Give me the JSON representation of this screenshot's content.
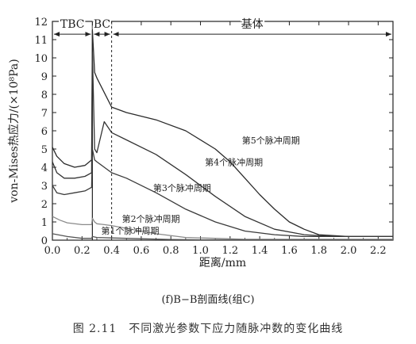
{
  "chart_data": {
    "type": "line",
    "xlabel": "距离/mm",
    "ylabel": "von-Mises热应力/(×10⁸Pa)",
    "xlim": [
      0,
      2.3
    ],
    "ylim": [
      0,
      12
    ],
    "x_ticks": [
      "0.0",
      "0.2",
      "0.4",
      "0.6",
      "0.8",
      "1.0",
      "1.2",
      "1.4",
      "1.6",
      "1.8",
      "2.0",
      "2.2"
    ],
    "y_ticks": [
      "0",
      "1",
      "2",
      "3",
      "4",
      "5",
      "6",
      "7",
      "8",
      "9",
      "10",
      "11",
      "12"
    ],
    "regions": [
      {
        "label": "TBC",
        "from": 0.0,
        "to": 0.27
      },
      {
        "label": "BC",
        "from": 0.27,
        "to": 0.4
      },
      {
        "label": "基体",
        "from": 0.4,
        "to": 2.3
      }
    ],
    "series": [
      {
        "name": "第5个脉冲周期",
        "x": [
          0,
          0.03,
          0.08,
          0.15,
          0.22,
          0.265,
          0.27,
          0.285,
          0.3,
          0.35,
          0.4,
          0.5,
          0.7,
          0.9,
          1.1,
          1.2,
          1.3,
          1.4,
          1.5,
          1.6,
          1.7,
          1.8,
          2.0,
          2.3
        ],
        "y": [
          5.1,
          4.6,
          4.2,
          4.0,
          4.1,
          4.4,
          11.5,
          9.2,
          8.9,
          8.1,
          7.3,
          7.0,
          6.6,
          6.0,
          5.0,
          4.3,
          3.4,
          2.5,
          1.7,
          1.0,
          0.6,
          0.3,
          0.2,
          0.2
        ]
      },
      {
        "name": "第4个脉冲周期",
        "x": [
          0,
          0.03,
          0.08,
          0.15,
          0.22,
          0.265,
          0.27,
          0.285,
          0.3,
          0.35,
          0.4,
          0.5,
          0.7,
          0.9,
          1.1,
          1.3,
          1.5,
          1.7,
          1.9,
          2.1,
          2.3
        ],
        "y": [
          4.3,
          3.7,
          3.4,
          3.4,
          3.5,
          3.7,
          10.3,
          5.0,
          4.8,
          6.5,
          5.9,
          5.5,
          4.7,
          3.6,
          2.4,
          1.3,
          0.6,
          0.3,
          0.2,
          0.2,
          0.2
        ]
      },
      {
        "name": "第3个脉冲周期",
        "x": [
          0,
          0.03,
          0.08,
          0.15,
          0.22,
          0.265,
          0.27,
          0.285,
          0.3,
          0.35,
          0.4,
          0.5,
          0.7,
          0.9,
          1.1,
          1.3,
          1.5,
          1.7,
          2.0,
          2.3
        ],
        "y": [
          3.0,
          2.6,
          2.5,
          2.6,
          2.7,
          2.9,
          5.0,
          4.4,
          4.3,
          4.0,
          3.7,
          3.4,
          2.6,
          1.7,
          1.0,
          0.5,
          0.3,
          0.2,
          0.2,
          0.2
        ]
      },
      {
        "name": "第2个脉冲周期",
        "x": [
          0,
          0.05,
          0.1,
          0.2,
          0.265,
          0.27,
          0.285,
          0.3,
          0.35,
          0.4,
          0.5,
          0.7,
          0.9,
          1.1,
          1.3,
          1.6,
          2.0,
          2.3
        ],
        "y": [
          1.3,
          1.1,
          0.95,
          0.85,
          0.85,
          1.2,
          1.0,
          0.9,
          0.85,
          0.8,
          0.65,
          0.35,
          0.15,
          0.1,
          0.05,
          0.05,
          0.05,
          0.05
        ]
      },
      {
        "name": "第1个脉冲周期",
        "x": [
          0,
          0.1,
          0.2,
          0.265,
          0.27,
          0.3,
          0.4,
          0.6,
          0.8,
          1.0,
          1.5,
          2.0,
          2.3
        ],
        "y": [
          0.35,
          0.2,
          0.1,
          0.1,
          0.2,
          0.15,
          0.12,
          0.08,
          0.04,
          0.02,
          0.02,
          0.02,
          0.02
        ]
      }
    ],
    "series_labels": [
      {
        "text": "第5个脉冲周期",
        "x": 1.28,
        "y": 5.3
      },
      {
        "text": "第4个脉冲周期",
        "x": 1.03,
        "y": 4.1
      },
      {
        "text": "第3个脉冲周期",
        "x": 0.68,
        "y": 2.7
      },
      {
        "text": "第2个脉冲周期",
        "x": 0.47,
        "y": 1.0
      },
      {
        "text": "第1个脉冲周期",
        "x": 0.33,
        "y": 0.35
      }
    ]
  },
  "subcaption": "(f)B−B剖面线(组C)",
  "figure_caption": "图 2.11　不同激光参数下应力随脉冲数的变化曲线"
}
